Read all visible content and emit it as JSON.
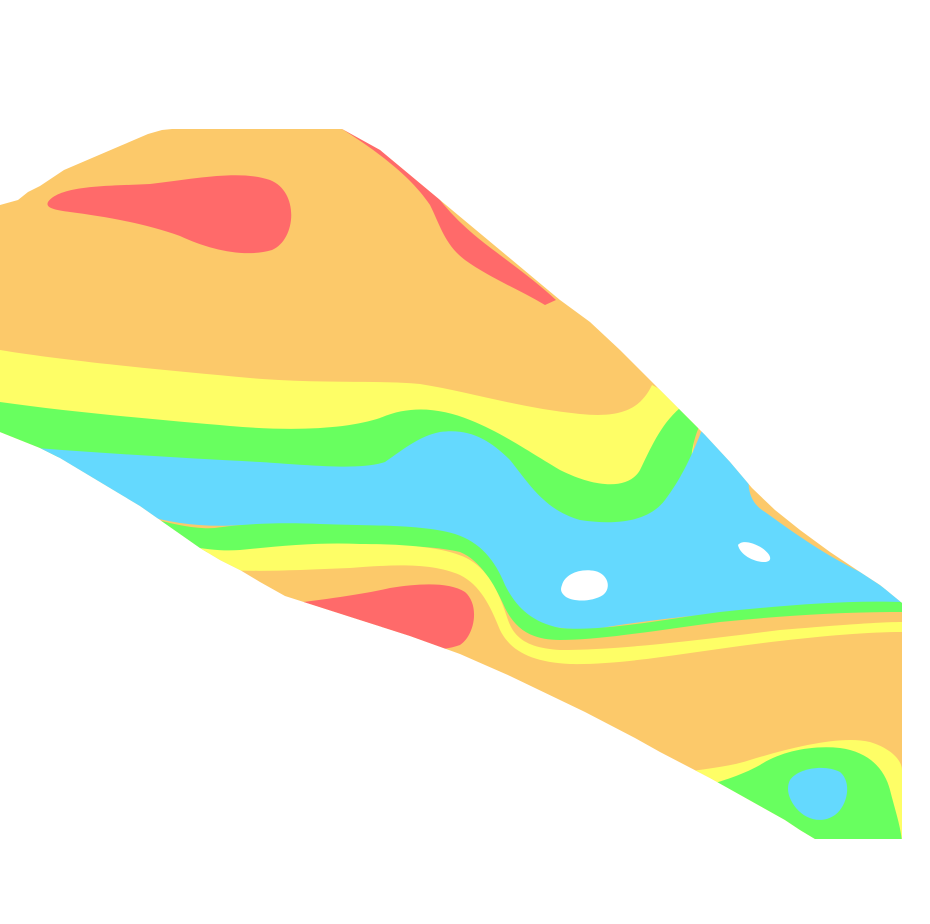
{
  "map": {
    "type": "filled-contour",
    "background_color": "#ffffff",
    "palette": {
      "red": "#ff6a6a",
      "orange": "#fcc96a",
      "yellow": "#fefe66",
      "green": "#68ff5f",
      "blue": "#64d9fe",
      "hole": "#ffffff"
    },
    "zones_from_outer_to_center": [
      "orange",
      "yellow",
      "green",
      "blue"
    ],
    "features": [
      "river-channel-blue",
      "red-high-zone-upper",
      "red-high-zone-lower",
      "red-edge-strip",
      "blue-pool-lower-right",
      "white-islands"
    ]
  }
}
